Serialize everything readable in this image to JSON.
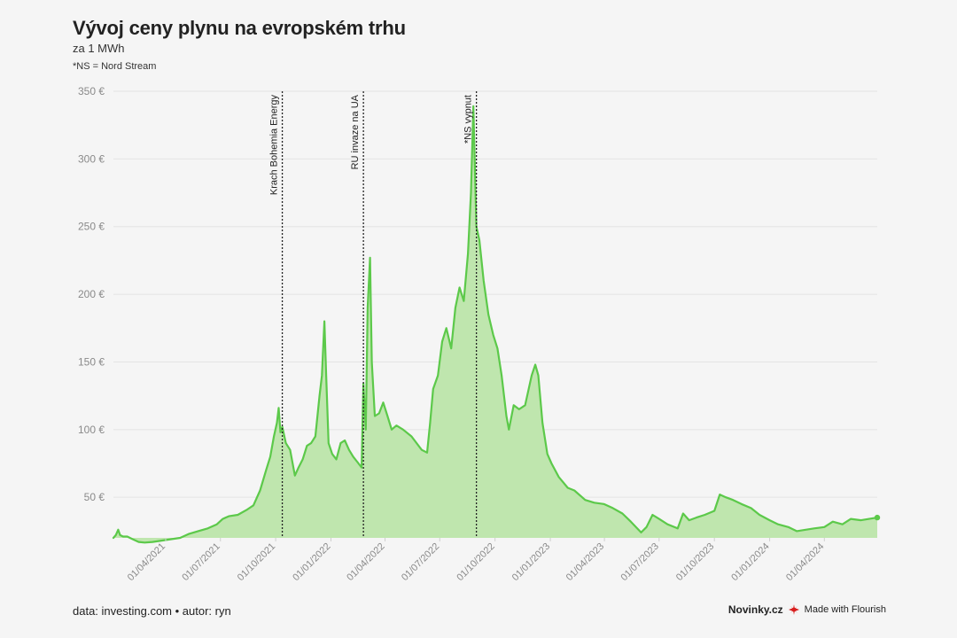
{
  "header": {
    "title": "Vývoj ceny plynu na evropském trhu",
    "subtitle": "za 1 MWh",
    "note": "*NS = Nord Stream"
  },
  "footer": {
    "source": "data: investing.com • autor: ryn",
    "brand": "Novinky.cz",
    "flourish": "Made with Flourish",
    "flourish_icon": "flourish-burst-icon"
  },
  "colors": {
    "line": "#5cc94a",
    "area": "#bfe6ae",
    "grid": "#e4e4e4",
    "axis_text": "#8a8a8a",
    "annotation": "#222222",
    "flourish_red": "#d81e1e"
  },
  "chart_data": {
    "type": "area",
    "title": "Vývoj ceny plynu na evropském trhu",
    "subtitle": "za 1 MWh",
    "y_ticks": [
      "50 €",
      "100 €",
      "150 €",
      "200 €",
      "250 €",
      "300 €",
      "350 €"
    ],
    "y_tick_values": [
      50,
      100,
      150,
      200,
      250,
      300,
      350
    ],
    "ylim": [
      20,
      350
    ],
    "xlim": [
      "2021-01-04",
      "2024-06-28"
    ],
    "grid": true,
    "x_ticks": [
      "01/04/2021",
      "01/07/2021",
      "01/10/2021",
      "01/01/2022",
      "01/04/2022",
      "01/07/2022",
      "01/10/2022",
      "01/01/2023",
      "01/04/2023",
      "01/07/2023",
      "01/10/2023",
      "01/01/2024",
      "01/04/2024"
    ],
    "x_tick_dates": [
      "2021-04-01",
      "2021-07-01",
      "2021-10-01",
      "2022-01-01",
      "2022-04-01",
      "2022-07-01",
      "2022-10-01",
      "2023-01-01",
      "2023-04-01",
      "2023-07-01",
      "2023-10-01",
      "2024-01-01",
      "2024-04-01"
    ],
    "annotations": [
      {
        "label": "Krach Bohemia Energy",
        "date": "2021-10-12"
      },
      {
        "label": "RU invaze na UA",
        "date": "2022-02-24"
      },
      {
        "label": "*NS vypnut",
        "date": "2022-08-31"
      }
    ],
    "series": [
      {
        "points": [
          [
            "2021-01-04",
            20
          ],
          [
            "2021-01-08",
            22
          ],
          [
            "2021-01-12",
            26
          ],
          [
            "2021-01-15",
            22
          ],
          [
            "2021-01-20",
            21
          ],
          [
            "2021-01-27",
            21
          ],
          [
            "2021-02-05",
            19
          ],
          [
            "2021-02-15",
            17
          ],
          [
            "2021-02-25",
            16.5
          ],
          [
            "2021-03-10",
            17
          ],
          [
            "2021-03-25",
            18
          ],
          [
            "2021-04-10",
            19
          ],
          [
            "2021-04-25",
            20
          ],
          [
            "2021-05-10",
            23
          ],
          [
            "2021-05-25",
            25
          ],
          [
            "2021-06-10",
            27
          ],
          [
            "2021-06-25",
            30
          ],
          [
            "2021-07-05",
            34
          ],
          [
            "2021-07-15",
            36
          ],
          [
            "2021-07-30",
            37
          ],
          [
            "2021-08-15",
            41
          ],
          [
            "2021-08-25",
            44
          ],
          [
            "2021-09-05",
            55
          ],
          [
            "2021-09-15",
            70
          ],
          [
            "2021-09-22",
            80
          ],
          [
            "2021-09-28",
            95
          ],
          [
            "2021-10-03",
            105
          ],
          [
            "2021-10-06",
            116
          ],
          [
            "2021-10-09",
            98
          ],
          [
            "2021-10-12",
            102
          ],
          [
            "2021-10-18",
            90
          ],
          [
            "2021-10-25",
            85
          ],
          [
            "2021-11-02",
            66
          ],
          [
            "2021-11-08",
            72
          ],
          [
            "2021-11-15",
            78
          ],
          [
            "2021-11-22",
            88
          ],
          [
            "2021-11-29",
            90
          ],
          [
            "2021-12-06",
            95
          ],
          [
            "2021-12-13",
            125
          ],
          [
            "2021-12-17",
            140
          ],
          [
            "2021-12-21",
            180
          ],
          [
            "2021-12-24",
            140
          ],
          [
            "2021-12-28",
            90
          ],
          [
            "2022-01-03",
            82
          ],
          [
            "2022-01-10",
            78
          ],
          [
            "2022-01-17",
            90
          ],
          [
            "2022-01-24",
            92
          ],
          [
            "2022-01-31",
            85
          ],
          [
            "2022-02-07",
            80
          ],
          [
            "2022-02-14",
            76
          ],
          [
            "2022-02-21",
            72
          ],
          [
            "2022-02-24",
            134
          ],
          [
            "2022-02-28",
            100
          ],
          [
            "2022-03-03",
            190
          ],
          [
            "2022-03-07",
            227
          ],
          [
            "2022-03-10",
            150
          ],
          [
            "2022-03-15",
            110
          ],
          [
            "2022-03-22",
            112
          ],
          [
            "2022-03-29",
            120
          ],
          [
            "2022-04-05",
            110
          ],
          [
            "2022-04-12",
            100
          ],
          [
            "2022-04-20",
            103
          ],
          [
            "2022-05-01",
            100
          ],
          [
            "2022-05-15",
            95
          ],
          [
            "2022-06-01",
            85
          ],
          [
            "2022-06-10",
            83
          ],
          [
            "2022-06-15",
            105
          ],
          [
            "2022-06-20",
            130
          ],
          [
            "2022-06-28",
            140
          ],
          [
            "2022-07-05",
            165
          ],
          [
            "2022-07-12",
            175
          ],
          [
            "2022-07-20",
            160
          ],
          [
            "2022-07-27",
            190
          ],
          [
            "2022-08-03",
            205
          ],
          [
            "2022-08-10",
            195
          ],
          [
            "2022-08-17",
            230
          ],
          [
            "2022-08-22",
            275
          ],
          [
            "2022-08-26",
            339
          ],
          [
            "2022-08-31",
            250
          ],
          [
            "2022-09-05",
            240
          ],
          [
            "2022-09-12",
            210
          ],
          [
            "2022-09-20",
            185
          ],
          [
            "2022-09-28",
            170
          ],
          [
            "2022-10-05",
            160
          ],
          [
            "2022-10-12",
            140
          ],
          [
            "2022-10-20",
            110
          ],
          [
            "2022-10-24",
            100
          ],
          [
            "2022-11-01",
            118
          ],
          [
            "2022-11-10",
            115
          ],
          [
            "2022-11-20",
            118
          ],
          [
            "2022-12-01",
            140
          ],
          [
            "2022-12-07",
            148
          ],
          [
            "2022-12-12",
            140
          ],
          [
            "2022-12-19",
            105
          ],
          [
            "2022-12-27",
            82
          ],
          [
            "2023-01-03",
            75
          ],
          [
            "2023-01-15",
            65
          ],
          [
            "2023-01-30",
            57
          ],
          [
            "2023-02-10",
            55
          ],
          [
            "2023-02-28",
            48
          ],
          [
            "2023-03-15",
            46
          ],
          [
            "2023-03-31",
            45
          ],
          [
            "2023-04-15",
            42
          ],
          [
            "2023-05-01",
            38
          ],
          [
            "2023-05-15",
            32
          ],
          [
            "2023-06-01",
            24
          ],
          [
            "2023-06-10",
            28
          ],
          [
            "2023-06-20",
            37
          ],
          [
            "2023-07-01",
            34
          ],
          [
            "2023-07-15",
            30
          ],
          [
            "2023-08-01",
            27
          ],
          [
            "2023-08-10",
            38
          ],
          [
            "2023-08-20",
            33
          ],
          [
            "2023-09-01",
            35
          ],
          [
            "2023-09-15",
            37
          ],
          [
            "2023-10-01",
            40
          ],
          [
            "2023-10-10",
            52
          ],
          [
            "2023-10-20",
            50
          ],
          [
            "2023-11-01",
            48
          ],
          [
            "2023-11-15",
            45
          ],
          [
            "2023-12-01",
            42
          ],
          [
            "2023-12-15",
            37
          ],
          [
            "2024-01-01",
            33
          ],
          [
            "2024-01-15",
            30
          ],
          [
            "2024-02-01",
            28
          ],
          [
            "2024-02-15",
            25
          ],
          [
            "2024-03-01",
            26
          ],
          [
            "2024-03-15",
            27
          ],
          [
            "2024-04-01",
            28
          ],
          [
            "2024-04-15",
            32
          ],
          [
            "2024-05-01",
            30
          ],
          [
            "2024-05-15",
            34
          ],
          [
            "2024-06-01",
            33
          ],
          [
            "2024-06-28",
            35
          ]
        ]
      }
    ]
  }
}
